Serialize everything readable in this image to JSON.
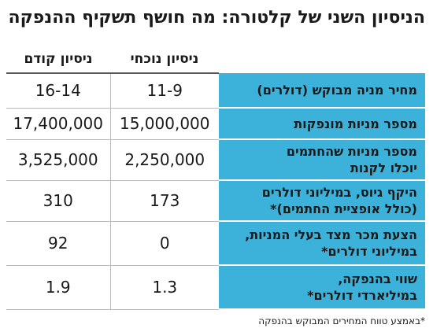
{
  "title": "הניסיון השני של קלטורה: מה חושף תשקיף ההנפקה",
  "table": {
    "columns": [
      "ניסיון נוכחי",
      "ניסיון קודם"
    ],
    "rows": [
      {
        "label": [
          "מחיר מניה מבוקש (דולרים)"
        ],
        "cells": [
          "11-9",
          "16-14"
        ]
      },
      {
        "label": [
          "מספר מניות מונפקות"
        ],
        "cells": [
          "15,000,000",
          "17,400,000"
        ]
      },
      {
        "label": [
          "מספר מניות שהחתמים",
          "יוכלו לקנות"
        ],
        "cells": [
          "2,250,000",
          "3,525,000"
        ]
      },
      {
        "label": [
          "היקף גיוס, במיליוני דולרים",
          "(כולל אופציית החתמים)*"
        ],
        "cells": [
          "173",
          "310"
        ]
      },
      {
        "label": [
          "הצעת מכר מצד בעלי המניות,",
          "במיליוני דולרים*"
        ],
        "cells": [
          "0",
          "92"
        ]
      },
      {
        "label": [
          "שווי בהנפקה,",
          "במיליארדי דולרים*"
        ],
        "cells": [
          "1.3",
          "1.9"
        ]
      }
    ]
  },
  "footnote": "*באמצע טווח המחירים המבוקש בהנפקה"
}
